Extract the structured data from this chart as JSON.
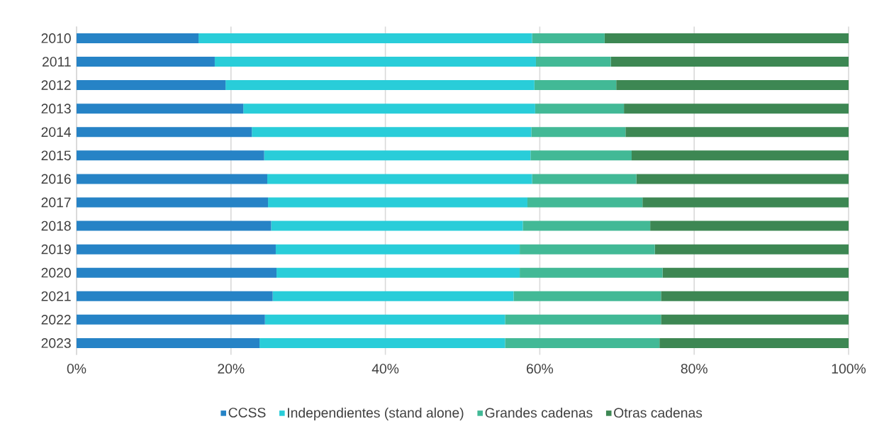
{
  "chart_data": {
    "type": "bar",
    "orientation": "horizontal",
    "stacked": true,
    "categories": [
      "2010",
      "2011",
      "2012",
      "2013",
      "2014",
      "2015",
      "2016",
      "2017",
      "2018",
      "2019",
      "2020",
      "2021",
      "2022",
      "2023"
    ],
    "series": [
      {
        "name": "CCSS",
        "color": "#2683c6",
        "values": [
          15.8,
          17.9,
          19.3,
          21.6,
          22.7,
          24.3,
          24.7,
          24.8,
          25.2,
          25.8,
          25.9,
          25.4,
          24.4,
          23.7
        ]
      },
      {
        "name": "Independientes (stand alone)",
        "color": "#29cdd9",
        "values": [
          43.2,
          41.6,
          40.0,
          37.8,
          36.2,
          34.5,
          34.3,
          33.6,
          32.6,
          31.6,
          31.5,
          31.2,
          31.1,
          31.8
        ]
      },
      {
        "name": "Grandes cadenas",
        "color": "#42b996",
        "values": [
          9.4,
          9.7,
          10.6,
          11.5,
          12.2,
          13.1,
          13.5,
          14.9,
          16.5,
          17.5,
          18.5,
          19.1,
          20.2,
          20.0
        ]
      },
      {
        "name": "Otras cadenas",
        "color": "#3d8753",
        "values": [
          31.6,
          30.8,
          30.1,
          29.1,
          28.9,
          28.1,
          27.5,
          26.7,
          25.7,
          25.1,
          24.1,
          24.3,
          24.3,
          24.5
        ]
      }
    ],
    "xlim": [
      0,
      100
    ],
    "xticks": [
      {
        "value": 0,
        "label": "0%"
      },
      {
        "value": 20,
        "label": "20%"
      },
      {
        "value": 40,
        "label": "40%"
      },
      {
        "value": 60,
        "label": "60%"
      },
      {
        "value": 80,
        "label": "80%"
      },
      {
        "value": 100,
        "label": "100%"
      }
    ],
    "grid": "x",
    "legend": "bottom"
  }
}
